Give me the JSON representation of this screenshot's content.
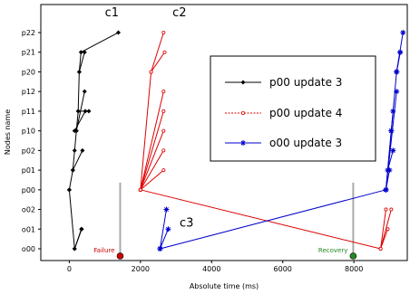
{
  "chart_data": {
    "type": "line",
    "title": "",
    "xlabel": "Absolute time (ms)",
    "ylabel": "Nodes name",
    "xlim": [
      -800,
      9500
    ],
    "x_ticks": [
      0,
      2000,
      4000,
      6000,
      8000
    ],
    "y_categories": [
      "o00",
      "o01",
      "o02",
      "p00",
      "p01",
      "p02",
      "p10",
      "p11",
      "p12",
      "p20",
      "p21",
      "p22"
    ],
    "legend_position": "upper-right",
    "series": [
      {
        "name": "p00 update 3",
        "color": "#000000",
        "marker": "diamond",
        "line_style": "solid",
        "segments": [
          [
            [
              0,
              "p00"
            ],
            [
              100,
              "p01"
            ],
            [
              150,
              "p02"
            ],
            [
              200,
              "p10"
            ],
            [
              250,
              "p11"
            ],
            [
              280,
              "p20"
            ],
            [
              330,
              "p21"
            ],
            [
              1380,
              "p22"
            ]
          ],
          [
            [
              150,
              "p10"
            ],
            [
              450,
              "p11"
            ]
          ],
          [
            [
              280,
              "p20"
            ],
            [
              430,
              "p21"
            ]
          ],
          [
            [
              200,
              "p10"
            ],
            [
              430,
              "p12"
            ]
          ],
          [
            [
              250,
              "p11"
            ],
            [
              550,
              "p11"
            ]
          ],
          [
            [
              100,
              "p01"
            ],
            [
              370,
              "p02"
            ]
          ],
          [
            [
              0,
              "p00"
            ],
            [
              150,
              "o00"
            ],
            [
              340,
              "o01"
            ]
          ],
          [
            [
              150,
              "o00"
            ],
            [
              350,
              "o01"
            ]
          ]
        ]
      },
      {
        "name": "p00 update 4",
        "color": "#e00000",
        "marker": "small-dot",
        "line_style": "dotted",
        "segments": [
          [
            [
              2000,
              "p00"
            ],
            [
              2300,
              "p20"
            ],
            [
              2650,
              "p22"
            ]
          ],
          [
            [
              2300,
              "p20"
            ],
            [
              2680,
              "p21"
            ]
          ],
          [
            [
              2000,
              "p00"
            ],
            [
              2650,
              "p12"
            ]
          ],
          [
            [
              2000,
              "p00"
            ],
            [
              2650,
              "p11"
            ]
          ],
          [
            [
              2000,
              "p00"
            ],
            [
              2650,
              "p10"
            ]
          ],
          [
            [
              2000,
              "p00"
            ],
            [
              2650,
              "p02"
            ]
          ],
          [
            [
              2000,
              "p00"
            ],
            [
              2650,
              "p01"
            ]
          ],
          [
            [
              2000,
              "p00"
            ],
            [
              8750,
              "o00"
            ],
            [
              8900,
              "o02"
            ]
          ],
          [
            [
              8750,
              "o00"
            ],
            [
              8950,
              "o01"
            ]
          ],
          [
            [
              8750,
              "o00"
            ],
            [
              9050,
              "o02"
            ]
          ]
        ]
      },
      {
        "name": "o00 update 3",
        "color": "#0000cc",
        "marker": "star",
        "line_style": "solid",
        "segments": [
          [
            [
              2550,
              "o00"
            ],
            [
              2730,
              "o02"
            ]
          ],
          [
            [
              2550,
              "o00"
            ],
            [
              2780,
              "o01"
            ]
          ],
          [
            [
              2550,
              "o00"
            ],
            [
              8900,
              "p00"
            ]
          ],
          [
            [
              8900,
              "p00"
            ],
            [
              9000,
              "p01"
            ]
          ],
          [
            [
              8900,
              "p00"
            ],
            [
              9050,
              "p10"
            ]
          ],
          [
            [
              8900,
              "p00"
            ],
            [
              9100,
              "p11"
            ]
          ],
          [
            [
              8900,
              "p00"
            ],
            [
              9200,
              "p12"
            ]
          ],
          [
            [
              9050,
              "p10"
            ],
            [
              9200,
              "p20"
            ]
          ],
          [
            [
              9200,
              "p20"
            ],
            [
              9300,
              "p21"
            ]
          ],
          [
            [
              9200,
              "p20"
            ],
            [
              9380,
              "p22"
            ]
          ],
          [
            [
              9200,
              "p20"
            ],
            [
              9300,
              "p21"
            ]
          ],
          [
            [
              8950,
              "p01"
            ],
            [
              9100,
              "p02"
            ]
          ]
        ]
      }
    ],
    "annotations": [
      {
        "text": "c1",
        "x": 1000,
        "y": "p22+"
      },
      {
        "text": "c2",
        "x": 2900,
        "y": "p22+"
      },
      {
        "text": "c3",
        "x": 3100,
        "y": "o01"
      }
    ],
    "events": [
      {
        "label": "Failure",
        "x": 1430,
        "color": "#cc0000"
      },
      {
        "label": "Recovery",
        "x": 7980,
        "color": "#228822"
      }
    ]
  }
}
